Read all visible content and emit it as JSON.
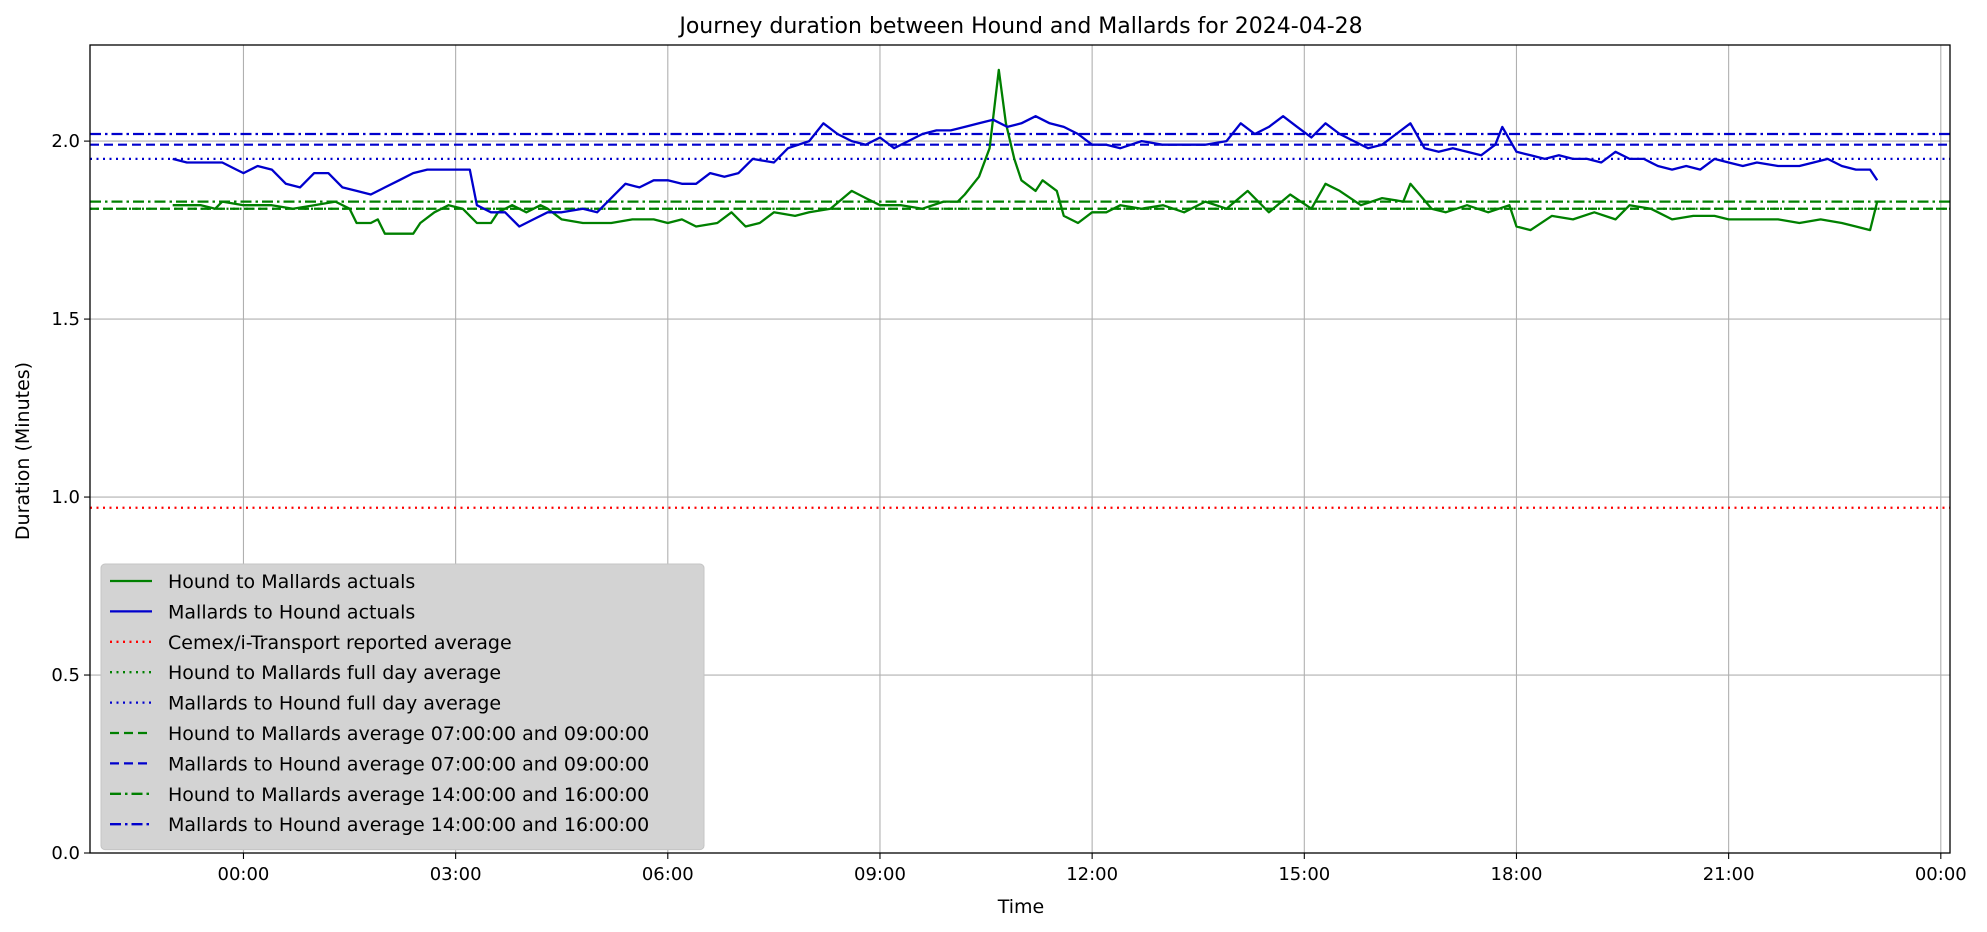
{
  "chart_data": {
    "type": "line",
    "title": "Journey duration between Hound and Mallards for 2024-04-28",
    "xlabel": "Time",
    "ylabel": "Duration  (Minutes)",
    "x_unit": "hours",
    "xlim": [
      -2.17,
      24.13
    ],
    "ylim": [
      0.0,
      2.27
    ],
    "x_ticks": [
      {
        "value": 0,
        "label": "00:00"
      },
      {
        "value": 3,
        "label": "03:00"
      },
      {
        "value": 6,
        "label": "06:00"
      },
      {
        "value": 9,
        "label": "09:00"
      },
      {
        "value": 12,
        "label": "12:00"
      },
      {
        "value": 15,
        "label": "15:00"
      },
      {
        "value": 18,
        "label": "18:00"
      },
      {
        "value": 21,
        "label": "21:00"
      },
      {
        "value": 24,
        "label": "00:00"
      }
    ],
    "y_ticks": [
      {
        "value": 0.0,
        "label": "0.0"
      },
      {
        "value": 0.5,
        "label": "0.5"
      },
      {
        "value": 1.0,
        "label": "1.0"
      },
      {
        "value": 1.5,
        "label": "1.5"
      },
      {
        "value": 2.0,
        "label": "2.0"
      }
    ],
    "grid": true,
    "legend_position": "lower-left",
    "series": [
      {
        "name": "Hound to Mallards actuals",
        "color": "#008000",
        "style": "solid",
        "points": [
          [
            -1.0,
            1.82
          ],
          [
            -0.6,
            1.82
          ],
          [
            -0.4,
            1.81
          ],
          [
            -0.3,
            1.83
          ],
          [
            0.0,
            1.82
          ],
          [
            0.4,
            1.82
          ],
          [
            0.7,
            1.81
          ],
          [
            1.0,
            1.82
          ],
          [
            1.3,
            1.83
          ],
          [
            1.5,
            1.81
          ],
          [
            1.6,
            1.77
          ],
          [
            1.8,
            1.77
          ],
          [
            1.9,
            1.78
          ],
          [
            2.0,
            1.74
          ],
          [
            2.2,
            1.74
          ],
          [
            2.4,
            1.74
          ],
          [
            2.5,
            1.77
          ],
          [
            2.7,
            1.8
          ],
          [
            2.9,
            1.82
          ],
          [
            3.1,
            1.81
          ],
          [
            3.3,
            1.77
          ],
          [
            3.5,
            1.77
          ],
          [
            3.6,
            1.8
          ],
          [
            3.8,
            1.82
          ],
          [
            4.0,
            1.8
          ],
          [
            4.2,
            1.82
          ],
          [
            4.3,
            1.81
          ],
          [
            4.5,
            1.78
          ],
          [
            4.8,
            1.77
          ],
          [
            5.2,
            1.77
          ],
          [
            5.5,
            1.78
          ],
          [
            5.8,
            1.78
          ],
          [
            6.0,
            1.77
          ],
          [
            6.2,
            1.78
          ],
          [
            6.4,
            1.76
          ],
          [
            6.7,
            1.77
          ],
          [
            6.9,
            1.8
          ],
          [
            7.1,
            1.76
          ],
          [
            7.3,
            1.77
          ],
          [
            7.5,
            1.8
          ],
          [
            7.8,
            1.79
          ],
          [
            8.0,
            1.8
          ],
          [
            8.3,
            1.81
          ],
          [
            8.6,
            1.86
          ],
          [
            8.8,
            1.84
          ],
          [
            9.0,
            1.82
          ],
          [
            9.3,
            1.82
          ],
          [
            9.6,
            1.81
          ],
          [
            9.9,
            1.83
          ],
          [
            10.1,
            1.83
          ],
          [
            10.2,
            1.85
          ],
          [
            10.4,
            1.9
          ],
          [
            10.55,
            1.98
          ],
          [
            10.68,
            2.2
          ],
          [
            10.78,
            2.05
          ],
          [
            10.9,
            1.95
          ],
          [
            11.0,
            1.89
          ],
          [
            11.2,
            1.86
          ],
          [
            11.3,
            1.89
          ],
          [
            11.5,
            1.86
          ],
          [
            11.6,
            1.79
          ],
          [
            11.8,
            1.77
          ],
          [
            12.0,
            1.8
          ],
          [
            12.2,
            1.8
          ],
          [
            12.4,
            1.82
          ],
          [
            12.7,
            1.81
          ],
          [
            13.0,
            1.82
          ],
          [
            13.3,
            1.8
          ],
          [
            13.6,
            1.83
          ],
          [
            13.9,
            1.81
          ],
          [
            14.2,
            1.86
          ],
          [
            14.5,
            1.8
          ],
          [
            14.8,
            1.85
          ],
          [
            15.1,
            1.81
          ],
          [
            15.3,
            1.88
          ],
          [
            15.5,
            1.86
          ],
          [
            15.8,
            1.82
          ],
          [
            16.1,
            1.84
          ],
          [
            16.4,
            1.83
          ],
          [
            16.5,
            1.88
          ],
          [
            16.8,
            1.81
          ],
          [
            17.0,
            1.8
          ],
          [
            17.3,
            1.82
          ],
          [
            17.6,
            1.8
          ],
          [
            17.9,
            1.82
          ],
          [
            18.0,
            1.76
          ],
          [
            18.2,
            1.75
          ],
          [
            18.5,
            1.79
          ],
          [
            18.8,
            1.78
          ],
          [
            19.1,
            1.8
          ],
          [
            19.4,
            1.78
          ],
          [
            19.6,
            1.82
          ],
          [
            19.9,
            1.81
          ],
          [
            20.2,
            1.78
          ],
          [
            20.5,
            1.79
          ],
          [
            20.8,
            1.79
          ],
          [
            21.0,
            1.78
          ],
          [
            21.3,
            1.78
          ],
          [
            21.7,
            1.78
          ],
          [
            22.0,
            1.77
          ],
          [
            22.3,
            1.78
          ],
          [
            22.6,
            1.77
          ],
          [
            22.8,
            1.76
          ],
          [
            23.0,
            1.75
          ],
          [
            23.1,
            1.83
          ]
        ]
      },
      {
        "name": "Mallards to Hound actuals",
        "color": "#0000CD",
        "style": "solid",
        "points": [
          [
            -1.0,
            1.95
          ],
          [
            -0.8,
            1.94
          ],
          [
            -0.3,
            1.94
          ],
          [
            -0.1,
            1.92
          ],
          [
            0.0,
            1.91
          ],
          [
            0.2,
            1.93
          ],
          [
            0.4,
            1.92
          ],
          [
            0.6,
            1.88
          ],
          [
            0.8,
            1.87
          ],
          [
            1.0,
            1.91
          ],
          [
            1.2,
            1.91
          ],
          [
            1.4,
            1.87
          ],
          [
            1.6,
            1.86
          ],
          [
            1.8,
            1.85
          ],
          [
            2.0,
            1.87
          ],
          [
            2.2,
            1.89
          ],
          [
            2.4,
            1.91
          ],
          [
            2.6,
            1.92
          ],
          [
            2.8,
            1.92
          ],
          [
            3.0,
            1.92
          ],
          [
            3.2,
            1.92
          ],
          [
            3.3,
            1.82
          ],
          [
            3.5,
            1.8
          ],
          [
            3.7,
            1.8
          ],
          [
            3.9,
            1.76
          ],
          [
            4.1,
            1.78
          ],
          [
            4.3,
            1.8
          ],
          [
            4.5,
            1.8
          ],
          [
            4.8,
            1.81
          ],
          [
            5.0,
            1.8
          ],
          [
            5.2,
            1.84
          ],
          [
            5.4,
            1.88
          ],
          [
            5.6,
            1.87
          ],
          [
            5.8,
            1.89
          ],
          [
            6.0,
            1.89
          ],
          [
            6.2,
            1.88
          ],
          [
            6.4,
            1.88
          ],
          [
            6.6,
            1.91
          ],
          [
            6.8,
            1.9
          ],
          [
            7.0,
            1.91
          ],
          [
            7.2,
            1.95
          ],
          [
            7.5,
            1.94
          ],
          [
            7.7,
            1.98
          ],
          [
            8.0,
            2.0
          ],
          [
            8.2,
            2.05
          ],
          [
            8.4,
            2.02
          ],
          [
            8.6,
            2.0
          ],
          [
            8.8,
            1.99
          ],
          [
            9.0,
            2.01
          ],
          [
            9.2,
            1.98
          ],
          [
            9.4,
            2.0
          ],
          [
            9.6,
            2.02
          ],
          [
            9.8,
            2.03
          ],
          [
            10.0,
            2.03
          ],
          [
            10.2,
            2.04
          ],
          [
            10.4,
            2.05
          ],
          [
            10.6,
            2.06
          ],
          [
            10.8,
            2.04
          ],
          [
            11.0,
            2.05
          ],
          [
            11.2,
            2.07
          ],
          [
            11.4,
            2.05
          ],
          [
            11.6,
            2.04
          ],
          [
            11.8,
            2.02
          ],
          [
            12.0,
            1.99
          ],
          [
            12.2,
            1.99
          ],
          [
            12.4,
            1.98
          ],
          [
            12.7,
            2.0
          ],
          [
            13.0,
            1.99
          ],
          [
            13.3,
            1.99
          ],
          [
            13.6,
            1.99
          ],
          [
            13.9,
            2.0
          ],
          [
            14.1,
            2.05
          ],
          [
            14.3,
            2.02
          ],
          [
            14.5,
            2.04
          ],
          [
            14.7,
            2.07
          ],
          [
            14.9,
            2.04
          ],
          [
            15.1,
            2.01
          ],
          [
            15.3,
            2.05
          ],
          [
            15.5,
            2.02
          ],
          [
            15.7,
            2.0
          ],
          [
            15.9,
            1.98
          ],
          [
            16.1,
            1.99
          ],
          [
            16.3,
            2.02
          ],
          [
            16.5,
            2.05
          ],
          [
            16.7,
            1.98
          ],
          [
            16.9,
            1.97
          ],
          [
            17.1,
            1.98
          ],
          [
            17.3,
            1.97
          ],
          [
            17.5,
            1.96
          ],
          [
            17.7,
            1.99
          ],
          [
            17.8,
            2.04
          ],
          [
            18.0,
            1.97
          ],
          [
            18.2,
            1.96
          ],
          [
            18.4,
            1.95
          ],
          [
            18.6,
            1.96
          ],
          [
            18.8,
            1.95
          ],
          [
            19.0,
            1.95
          ],
          [
            19.2,
            1.94
          ],
          [
            19.4,
            1.97
          ],
          [
            19.6,
            1.95
          ],
          [
            19.8,
            1.95
          ],
          [
            20.0,
            1.93
          ],
          [
            20.2,
            1.92
          ],
          [
            20.4,
            1.93
          ],
          [
            20.6,
            1.92
          ],
          [
            20.8,
            1.95
          ],
          [
            21.0,
            1.94
          ],
          [
            21.2,
            1.93
          ],
          [
            21.4,
            1.94
          ],
          [
            21.7,
            1.93
          ],
          [
            22.0,
            1.93
          ],
          [
            22.2,
            1.94
          ],
          [
            22.4,
            1.95
          ],
          [
            22.6,
            1.93
          ],
          [
            22.8,
            1.92
          ],
          [
            23.0,
            1.92
          ],
          [
            23.1,
            1.89
          ]
        ]
      },
      {
        "name": "Cemex/i-Transport reported average",
        "color": "#FF0000",
        "style": "dotted",
        "hline": 0.97
      },
      {
        "name": "Hound to Mallards full day average",
        "color": "#008000",
        "style": "dotted",
        "hline": 1.81
      },
      {
        "name": "Mallards to Hound full day average",
        "color": "#0000CD",
        "style": "dotted",
        "hline": 1.95
      },
      {
        "name": "Hound to Mallards average 07:00:00 and 09:00:00",
        "color": "#008000",
        "style": "dashed",
        "hline": 1.81
      },
      {
        "name": "Mallards to Hound average 07:00:00 and 09:00:00",
        "color": "#0000CD",
        "style": "dashed",
        "hline": 1.99
      },
      {
        "name": "Hound to Mallards average 14:00:00 and 16:00:00",
        "color": "#008000",
        "style": "dashdot",
        "hline": 1.83
      },
      {
        "name": "Mallards to Hound average 14:00:00 and 16:00:00",
        "color": "#0000CD",
        "style": "dashdot",
        "hline": 2.02
      }
    ]
  }
}
